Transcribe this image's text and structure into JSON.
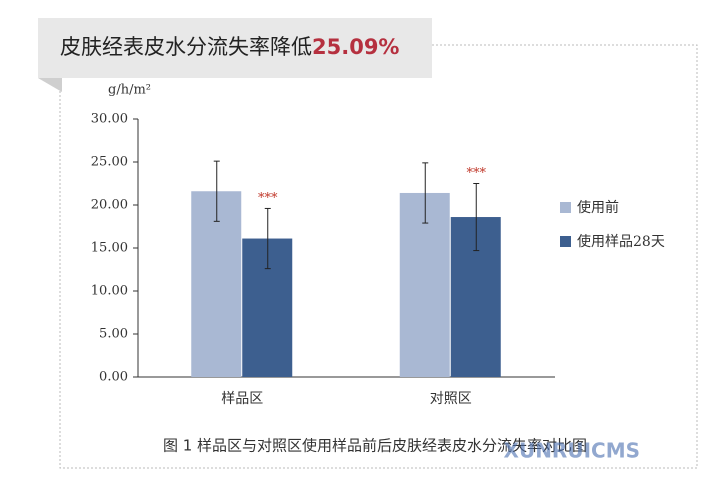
{
  "banner": {
    "text": "皮肤经表皮水分流失率降低",
    "highlight": "25.09%"
  },
  "caption": "图 1  样品区与对照区使用样品前后皮肤经表皮水分流失率对比图",
  "watermark": "XUNRUICMS",
  "chart_data": {
    "type": "bar",
    "y_label": "g/h/m²",
    "categories": [
      "样品区",
      "对照区"
    ],
    "series": [
      {
        "name": "使用前",
        "color": "#a9b8d3",
        "values": [
          21.6,
          21.4
        ],
        "errors": [
          3.5,
          3.5
        ]
      },
      {
        "name": "使用样品28天",
        "color": "#3d5f8f",
        "values": [
          16.1,
          18.6
        ],
        "errors": [
          3.5,
          3.9
        ]
      }
    ],
    "annotations": [
      "***",
      "***"
    ],
    "annotation_color": "#c0392b",
    "ylim": [
      0,
      30
    ],
    "yticks": [
      {
        "value": 0,
        "label": "0.00"
      },
      {
        "value": 5,
        "label": "5.00"
      },
      {
        "value": 10,
        "label": "10.00"
      },
      {
        "value": 15,
        "label": "15.00"
      },
      {
        "value": 20,
        "label": "20.00"
      },
      {
        "value": 25,
        "label": "25.00"
      },
      {
        "value": 30,
        "label": "30.00"
      }
    ],
    "legend": "right"
  }
}
